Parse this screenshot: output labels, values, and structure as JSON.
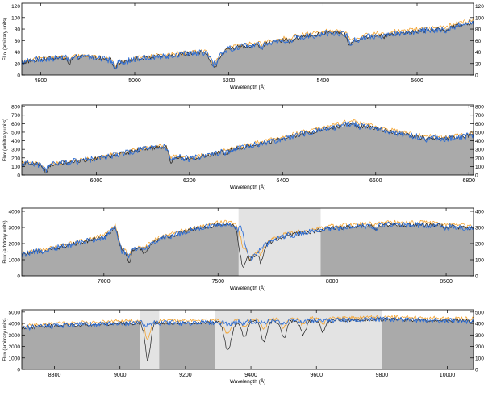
{
  "figure": {
    "panels": [
      {
        "id": "panel-1",
        "xlabel": "Wavelength (Å)",
        "ylabel": "Flux (arbitrary units)",
        "xlim": [
          4760,
          5720
        ],
        "ylim": [
          0,
          125
        ],
        "xticks": [
          4800,
          5000,
          5200,
          5400,
          5600
        ],
        "yticks": [
          0,
          20,
          40,
          60,
          80,
          100,
          120
        ],
        "masked_regions": [],
        "continuum": [
          [
            4760,
            22
          ],
          [
            4800,
            28
          ],
          [
            4900,
            32
          ],
          [
            4950,
            26
          ],
          [
            4955,
            18
          ],
          [
            5000,
            28
          ],
          [
            5100,
            36
          ],
          [
            5150,
            40
          ],
          [
            5165,
            24
          ],
          [
            5200,
            46
          ],
          [
            5300,
            58
          ],
          [
            5350,
            66
          ],
          [
            5420,
            74
          ],
          [
            5450,
            72
          ],
          [
            5460,
            58
          ],
          [
            5500,
            68
          ],
          [
            5600,
            76
          ],
          [
            5650,
            80
          ],
          [
            5700,
            88
          ],
          [
            5720,
            92
          ]
        ],
        "features": [
          [
            4861,
            10,
            4
          ],
          [
            4958,
            6,
            3
          ],
          [
            5170,
            14,
            5
          ],
          [
            5270,
            8,
            4
          ],
          [
            5330,
            6,
            4
          ],
          [
            5455,
            10,
            5
          ],
          [
            5530,
            6,
            4
          ],
          [
            5660,
            6,
            4
          ]
        ]
      },
      {
        "id": "panel-2",
        "xlabel": "Wavelength (Å)",
        "ylabel": "Flux (arbitrary units)",
        "xlim": [
          5840,
          6810
        ],
        "ylim": [
          0,
          820
        ],
        "xticks": [
          6000,
          6200,
          6400,
          6600,
          6800
        ],
        "yticks": [
          0,
          100,
          200,
          300,
          400,
          500,
          600,
          700,
          800
        ],
        "masked_regions": [],
        "continuum": [
          [
            5840,
            140
          ],
          [
            5880,
            120
          ],
          [
            5890,
            80
          ],
          [
            5900,
            120
          ],
          [
            6000,
            190
          ],
          [
            6100,
            300
          ],
          [
            6150,
            330
          ],
          [
            6160,
            220
          ],
          [
            6200,
            190
          ],
          [
            6250,
            240
          ],
          [
            6300,
            310
          ],
          [
            6400,
            420
          ],
          [
            6450,
            490
          ],
          [
            6500,
            540
          ],
          [
            6550,
            610
          ],
          [
            6600,
            540
          ],
          [
            6650,
            480
          ],
          [
            6700,
            440
          ],
          [
            6750,
            420
          ],
          [
            6810,
            470
          ]
        ],
        "features": [
          [
            5893,
            60,
            4
          ],
          [
            6160,
            60,
            5
          ],
          [
            6280,
            30,
            4
          ],
          [
            6563,
            40,
            5
          ],
          [
            6710,
            30,
            4
          ]
        ]
      },
      {
        "id": "panel-3",
        "xlabel": "Wavelength (Å)",
        "ylabel": "Flux (arbitrary units)",
        "xlim": [
          6640,
          8620
        ],
        "ylim": [
          0,
          4200
        ],
        "xticks": [
          7000,
          7500,
          8000,
          8500
        ],
        "yticks": [
          0,
          1000,
          2000,
          3000,
          4000
        ],
        "masked_regions": [
          [
            7590,
            7950
          ]
        ],
        "continuum": [
          [
            6640,
            1300
          ],
          [
            6800,
            1750
          ],
          [
            7000,
            2400
          ],
          [
            7050,
            3000
          ],
          [
            7080,
            1500
          ],
          [
            7150,
            1700
          ],
          [
            7250,
            2300
          ],
          [
            7400,
            2900
          ],
          [
            7500,
            3150
          ],
          [
            7600,
            3200
          ],
          [
            7640,
            1000
          ],
          [
            7700,
            1900
          ],
          [
            7800,
            2500
          ],
          [
            7900,
            2700
          ],
          [
            8000,
            2950
          ],
          [
            8200,
            3150
          ],
          [
            8400,
            3150
          ],
          [
            8500,
            3100
          ],
          [
            8620,
            2900
          ]
        ],
        "features": [
          [
            7605,
            2200,
            14
          ],
          [
            7690,
            900,
            10
          ],
          [
            7180,
            500,
            12
          ],
          [
            7110,
            800,
            8
          ],
          [
            8190,
            300,
            10
          ],
          [
            8500,
            250,
            8
          ]
        ]
      },
      {
        "id": "panel-4",
        "xlabel": "Wavelength (Å)",
        "ylabel": "Flux (arbitrary units)",
        "xlim": [
          8700,
          10080
        ],
        "ylim": [
          0,
          5200
        ],
        "xticks": [
          8800,
          9000,
          9200,
          9400,
          9600,
          9800,
          10000
        ],
        "yticks": [
          0,
          1000,
          2000,
          3000,
          4000,
          5000
        ],
        "masked_regions": [
          [
            9060,
            9120
          ],
          [
            9290,
            9800
          ]
        ],
        "continuum": [
          [
            8700,
            3600
          ],
          [
            8800,
            3800
          ],
          [
            9000,
            4000
          ],
          [
            9100,
            4050
          ],
          [
            9200,
            4050
          ],
          [
            9300,
            4100
          ],
          [
            9400,
            4150
          ],
          [
            9500,
            4200
          ],
          [
            9600,
            4250
          ],
          [
            9700,
            4300
          ],
          [
            9800,
            4350
          ],
          [
            9900,
            4300
          ],
          [
            10000,
            4250
          ],
          [
            10080,
            4200
          ]
        ],
        "features": [
          [
            9085,
            3200,
            8
          ],
          [
            9330,
            2500,
            10
          ],
          [
            9380,
            1400,
            8
          ],
          [
            9440,
            1800,
            8
          ],
          [
            9500,
            1500,
            8
          ],
          [
            9560,
            1200,
            8
          ],
          [
            9620,
            1000,
            8
          ]
        ]
      }
    ]
  },
  "chart_data": [
    {
      "type": "line",
      "title": "",
      "xlabel": "Wavelength (Å)",
      "ylabel": "Flux (arbitrary units)",
      "xlim": [
        4760,
        5720
      ],
      "ylim": [
        0,
        125
      ],
      "series_colors": {
        "filled_model": "#aaaaaa",
        "black_model": "#222222",
        "blue_spectrum": "#2f6fd6",
        "orange_spectrum": "#f3a432"
      }
    },
    {
      "type": "line",
      "title": "",
      "xlabel": "Wavelength (Å)",
      "ylabel": "Flux (arbitrary units)",
      "xlim": [
        5840,
        6810
      ],
      "ylim": [
        0,
        820
      ]
    },
    {
      "type": "line",
      "title": "",
      "xlabel": "Wavelength (Å)",
      "ylabel": "Flux (arbitrary units)",
      "xlim": [
        6640,
        8620
      ],
      "ylim": [
        0,
        4200
      ],
      "masked_regions": [
        [
          7590,
          7950
        ]
      ]
    },
    {
      "type": "line",
      "title": "",
      "xlabel": "Wavelength (Å)",
      "ylabel": "Flux (arbitrary units)",
      "xlim": [
        8700,
        10080
      ],
      "ylim": [
        0,
        5200
      ],
      "masked_regions": [
        [
          9060,
          9120
        ],
        [
          9290,
          9800
        ]
      ]
    }
  ],
  "colors": {
    "fill": "#aaaaaa",
    "mask": "#e3e3e3",
    "black": "#222222",
    "blue": "#2f6fd6",
    "orange": "#f3a432"
  }
}
